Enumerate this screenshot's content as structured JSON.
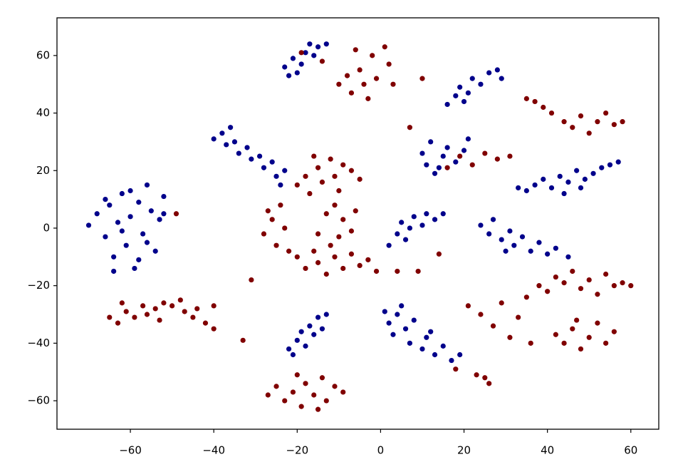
{
  "chart_data": {
    "type": "scatter",
    "xlim": [
      -77.6,
      66.7
    ],
    "ylim": [
      -69.9,
      73.1
    ],
    "xticks": [
      {
        "value": -60,
        "label": "−60"
      },
      {
        "value": -40,
        "label": "−40"
      },
      {
        "value": -20,
        "label": "−20"
      },
      0,
      20,
      40,
      60
    ],
    "yticks": [
      {
        "value": -60,
        "label": "−60"
      },
      {
        "value": -40,
        "label": "−40"
      },
      {
        "value": -20,
        "label": "−20"
      },
      0,
      20,
      40,
      60
    ],
    "series": [
      {
        "color": "#00008b",
        "x": [
          -70,
          -68,
          -66,
          -65,
          -64,
          -63,
          -62,
          -61,
          -60,
          -59,
          -58,
          -57,
          -56,
          -55,
          -54,
          -53,
          -52,
          -58,
          -64,
          -62,
          -66,
          -56,
          -52,
          -60,
          -40,
          -38,
          -37,
          -35,
          -34,
          -32,
          -31,
          -29,
          -28,
          -26,
          -25,
          -24,
          -23,
          -36,
          -23,
          -22,
          -21,
          -19,
          -18,
          -16,
          -15,
          -13,
          -20,
          -17,
          -22,
          -20,
          -19,
          -18,
          -17,
          -16,
          -15,
          -13,
          -14,
          -21,
          1,
          2,
          3,
          4,
          6,
          7,
          8,
          10,
          11,
          13,
          15,
          17,
          19,
          5,
          12,
          2,
          4,
          5,
          7,
          8,
          10,
          11,
          13,
          15,
          6,
          10,
          11,
          12,
          13,
          15,
          16,
          18,
          20,
          21,
          14,
          16,
          18,
          19,
          21,
          22,
          24,
          26,
          28,
          29,
          20,
          24,
          26,
          27,
          29,
          31,
          32,
          34,
          36,
          38,
          40,
          42,
          45,
          30,
          33,
          35,
          37,
          39,
          41,
          43,
          45,
          47,
          49,
          51,
          53,
          55,
          57,
          44,
          48
        ],
        "values": [
          1,
          5,
          -3,
          8,
          -10,
          2,
          12,
          -6,
          4,
          -14,
          9,
          -2,
          15,
          6,
          -8,
          3,
          11,
          -11,
          -15,
          -1,
          10,
          -5,
          5,
          13,
          31,
          33,
          29,
          30,
          26,
          28,
          24,
          25,
          21,
          23,
          18,
          15,
          20,
          35,
          56,
          53,
          59,
          57,
          61,
          60,
          63,
          64,
          54,
          64,
          -42,
          -39,
          -36,
          -41,
          -34,
          -37,
          -31,
          -30,
          -35,
          -44,
          -29,
          -33,
          -37,
          -30,
          -35,
          -40,
          -32,
          -42,
          -38,
          -44,
          -41,
          -46,
          -44,
          -27,
          -36,
          -6,
          -2,
          2,
          0,
          4,
          1,
          5,
          3,
          5,
          -4,
          26,
          22,
          30,
          19,
          25,
          28,
          23,
          27,
          31,
          21,
          43,
          46,
          49,
          47,
          52,
          50,
          54,
          55,
          52,
          44,
          1,
          -2,
          3,
          -4,
          -1,
          -6,
          -3,
          -8,
          -5,
          -9,
          -7,
          -10,
          -8,
          14,
          13,
          15,
          17,
          14,
          18,
          16,
          20,
          17,
          19,
          21,
          22,
          23,
          12,
          14
        ]
      },
      {
        "color": "#800000",
        "x": [
          -65,
          -63,
          -61,
          -59,
          -57,
          -56,
          -54,
          -52,
          -50,
          -48,
          -47,
          -45,
          -44,
          -42,
          -40,
          -62,
          -53,
          -27,
          -25,
          -23,
          -21,
          -19,
          -18,
          -16,
          -14,
          -13,
          -11,
          -9,
          -20,
          -15,
          -10,
          -8,
          -7,
          -5,
          -4,
          -2,
          -1,
          1,
          3,
          -6,
          -3,
          -19,
          -14,
          2,
          -20,
          -18,
          -17,
          -15,
          -14,
          -12,
          -11,
          -9,
          -7,
          -5,
          -16,
          -10,
          -28,
          -26,
          -25,
          -24,
          -23,
          -22,
          -27,
          -20,
          -18,
          -16,
          -15,
          -13,
          -11,
          -9,
          -7,
          -5,
          -3,
          -1,
          -12,
          -15,
          -13,
          -11,
          -9,
          -7,
          -6,
          -10,
          35,
          37,
          39,
          41,
          44,
          46,
          48,
          50,
          52,
          54,
          56,
          58,
          35,
          38,
          40,
          42,
          44,
          46,
          48,
          50,
          52,
          54,
          56,
          58,
          60,
          42,
          44,
          46,
          48,
          50,
          52,
          54,
          56,
          47,
          21,
          24,
          27,
          29,
          31,
          33,
          36,
          18,
          25,
          26,
          23,
          19,
          22,
          25,
          28,
          31,
          16,
          -49,
          -31,
          -33,
          -40,
          10,
          7,
          4,
          9,
          14
        ],
        "values": [
          -31,
          -33,
          -29,
          -31,
          -27,
          -30,
          -28,
          -26,
          -27,
          -25,
          -29,
          -31,
          -28,
          -33,
          -35,
          -26,
          -32,
          -58,
          -55,
          -60,
          -57,
          -62,
          -54,
          -58,
          -52,
          -60,
          -55,
          -57,
          -51,
          -63,
          50,
          53,
          47,
          55,
          50,
          60,
          52,
          63,
          50,
          62,
          45,
          61,
          58,
          57,
          15,
          18,
          12,
          21,
          16,
          24,
          18,
          22,
          20,
          17,
          25,
          13,
          -2,
          3,
          -6,
          8,
          0,
          -8,
          6,
          -10,
          -14,
          -8,
          -12,
          -16,
          -10,
          -14,
          -9,
          -13,
          -11,
          -15,
          -6,
          -2,
          5,
          8,
          3,
          -1,
          6,
          -3,
          45,
          44,
          42,
          40,
          37,
          35,
          39,
          33,
          37,
          40,
          36,
          37,
          -24,
          -20,
          -22,
          -17,
          -19,
          -15,
          -21,
          -18,
          -23,
          -16,
          -20,
          -19,
          -20,
          -37,
          -40,
          -35,
          -42,
          -38,
          -33,
          -40,
          -36,
          -32,
          -27,
          -30,
          -34,
          -26,
          -38,
          -31,
          -40,
          -49,
          -52,
          -54,
          -51,
          25,
          22,
          26,
          24,
          25,
          21,
          5,
          -18,
          -39,
          -27,
          52,
          35,
          -15,
          -15,
          -9
        ]
      }
    ]
  }
}
